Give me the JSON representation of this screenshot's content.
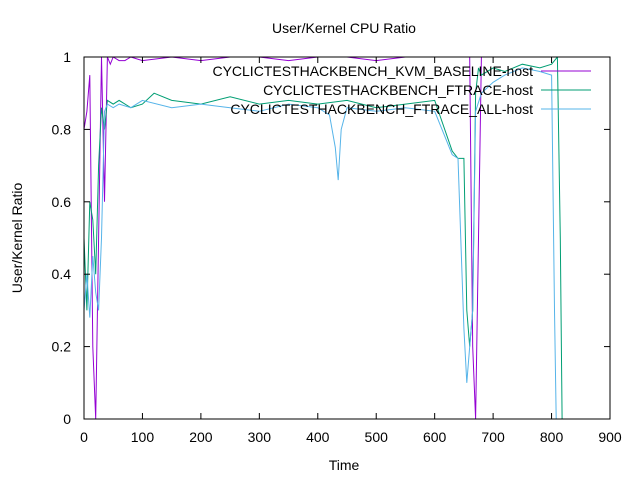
{
  "chart_data": {
    "type": "line",
    "title": "User/Kernel CPU Ratio",
    "xlabel": "Time",
    "ylabel": "User/Kernel Ratio",
    "xlim": [
      0,
      900
    ],
    "ylim": [
      0,
      1
    ],
    "xticks": [
      "0",
      "100",
      "200",
      "300",
      "400",
      "500",
      "600",
      "700",
      "800",
      "900"
    ],
    "yticks": [
      "0",
      "0.2",
      "0.4",
      "0.6",
      "0.8",
      "1"
    ],
    "grid": false,
    "legend_position": "top-right",
    "series": [
      {
        "name": "CYCLICTESTHACKBENCH_KVM_BASELINE-host",
        "color": "#9400d3",
        "x": [
          0,
          5,
          10,
          15,
          20,
          25,
          30,
          35,
          40,
          45,
          50,
          60,
          70,
          80,
          100,
          150,
          200,
          250,
          300,
          350,
          400,
          450,
          500,
          550,
          600,
          640,
          660,
          665,
          670,
          675,
          680,
          690,
          700,
          750,
          800,
          820
        ],
        "y": [
          0.8,
          0.85,
          0.95,
          0.2,
          0.0,
          0.5,
          1.0,
          0.6,
          1.0,
          0.98,
          1.0,
          0.99,
          0.99,
          1.0,
          0.99,
          1.0,
          0.99,
          1.0,
          1.0,
          0.99,
          1.0,
          1.0,
          0.99,
          1.0,
          1.0,
          1.0,
          1.0,
          0.2,
          0.0,
          0.5,
          1.0,
          1.0,
          1.0,
          1.0,
          1.0,
          1.0
        ]
      },
      {
        "name": "CYCLICTESTHACKBENCH_FTRACE-host",
        "color": "#009e73",
        "x": [
          0,
          5,
          10,
          15,
          20,
          25,
          30,
          35,
          40,
          50,
          60,
          80,
          100,
          120,
          150,
          200,
          250,
          300,
          350,
          400,
          450,
          500,
          550,
          600,
          630,
          640,
          650,
          655,
          660,
          665,
          670,
          675,
          680,
          700,
          720,
          750,
          780,
          800,
          810,
          815,
          818
        ],
        "y": [
          0.5,
          0.3,
          0.6,
          0.55,
          0.4,
          0.7,
          0.86,
          0.8,
          0.88,
          0.87,
          0.88,
          0.86,
          0.87,
          0.9,
          0.88,
          0.87,
          0.89,
          0.87,
          0.88,
          0.87,
          0.88,
          0.86,
          0.87,
          0.88,
          0.74,
          0.72,
          0.72,
          0.3,
          0.2,
          0.3,
          0.9,
          0.97,
          0.95,
          0.97,
          0.96,
          0.98,
          0.97,
          0.98,
          1.0,
          0.5,
          0.0
        ]
      },
      {
        "name": "CYCLICTESTHACKBENCH_FTRACE_ALL-host",
        "color": "#56b4e9",
        "x": [
          0,
          5,
          10,
          15,
          20,
          25,
          30,
          35,
          40,
          50,
          60,
          80,
          100,
          150,
          200,
          250,
          300,
          350,
          400,
          420,
          430,
          435,
          440,
          450,
          500,
          550,
          600,
          630,
          640,
          650,
          655,
          660,
          665,
          670,
          680,
          700,
          720,
          750,
          780,
          800,
          805,
          808
        ],
        "y": [
          0.3,
          0.4,
          0.28,
          0.45,
          0.35,
          0.3,
          0.5,
          0.85,
          0.87,
          0.86,
          0.87,
          0.86,
          0.88,
          0.86,
          0.87,
          0.86,
          0.85,
          0.87,
          0.86,
          0.84,
          0.75,
          0.66,
          0.8,
          0.86,
          0.85,
          0.86,
          0.85,
          0.73,
          0.72,
          0.25,
          0.1,
          0.2,
          0.3,
          0.85,
          0.9,
          0.93,
          0.95,
          0.97,
          0.96,
          0.95,
          0.3,
          0.0
        ]
      }
    ]
  }
}
